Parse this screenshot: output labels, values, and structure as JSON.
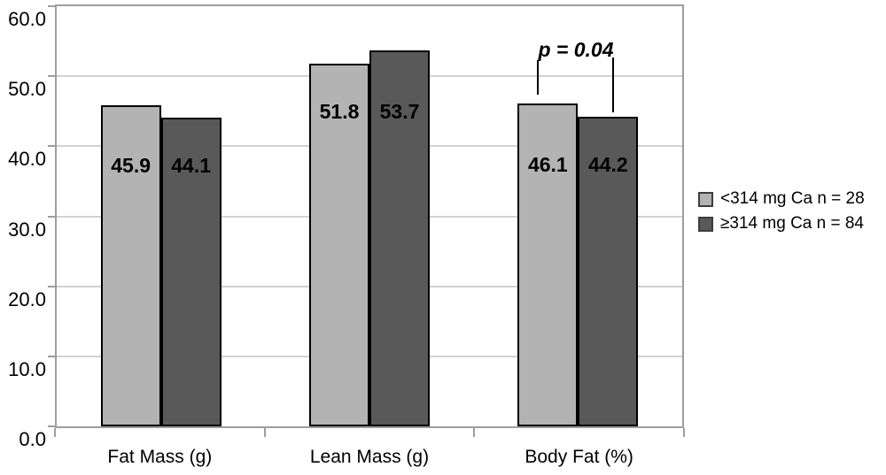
{
  "chart_data": {
    "type": "bar",
    "title": "",
    "categories": [
      "Fat Mass (g)",
      "Lean Mass (g)",
      "Body Fat (%)"
    ],
    "series": [
      {
        "name": "<314 mg Ca n = 28",
        "color": "#b3b3b3",
        "border_color": "#000000",
        "values": [
          45.9,
          51.8,
          46.1
        ],
        "labels": [
          "45.9",
          "51.8",
          "46.1"
        ]
      },
      {
        "name": "≥314 mg Ca n = 84",
        "color": "#595959",
        "border_color": "#000000",
        "values": [
          44.1,
          53.7,
          44.2
        ],
        "labels": [
          "44.1",
          "53.7",
          "44.2"
        ]
      }
    ],
    "y_axis": {
      "min": 0,
      "max": 60,
      "tick_step": 10,
      "tick_labels": [
        "0.0",
        "10.0",
        "20.0",
        "30.0",
        "40.0",
        "50.0",
        "60.0"
      ]
    },
    "grid": "horizontal",
    "legend": {
      "position": "right",
      "items": [
        "<314 mg Ca n = 28",
        "≥314 mg Ca n = 84"
      ]
    },
    "annotation": {
      "text": "p = 0.04",
      "category": "Body Fat (%)"
    }
  }
}
